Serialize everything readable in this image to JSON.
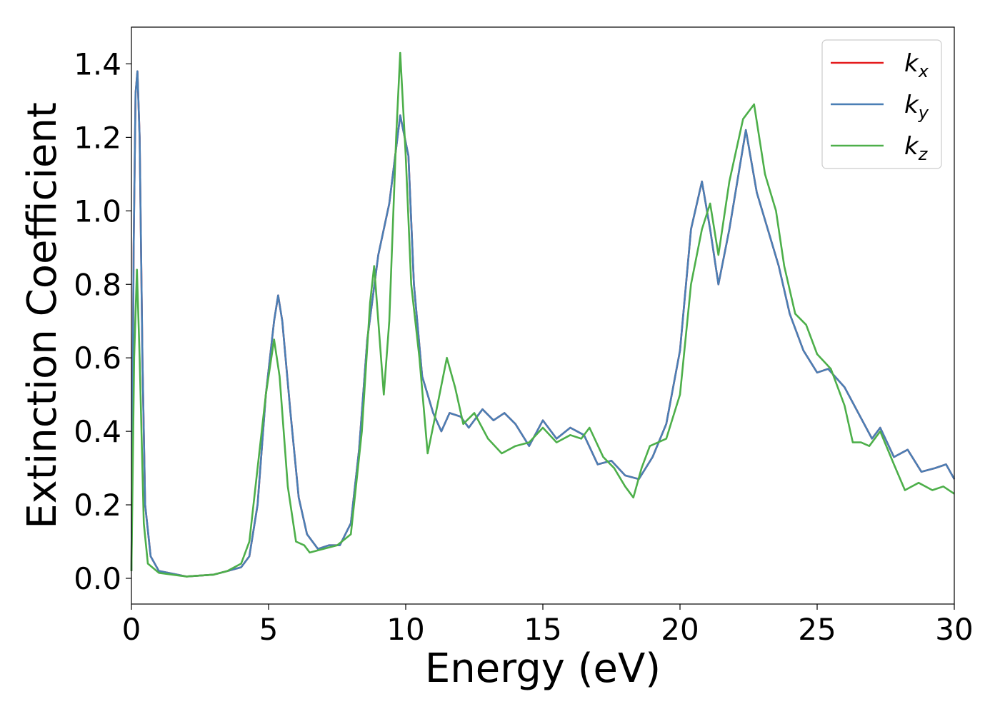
{
  "chart_data": {
    "type": "line",
    "title": "",
    "xlabel": "Energy (eV)",
    "ylabel": "Extinction Coefficient",
    "xlim": [
      0,
      30
    ],
    "ylim": [
      -0.07,
      1.5
    ],
    "xticks": [
      0,
      5,
      10,
      15,
      20,
      25,
      30
    ],
    "xtick_labels": [
      "0",
      "5",
      "10",
      "15",
      "20",
      "25",
      "30"
    ],
    "yticks": [
      0.0,
      0.2,
      0.4,
      0.6,
      0.8,
      1.0,
      1.2,
      1.4
    ],
    "ytick_labels": [
      "0.0",
      "0.2",
      "0.4",
      "0.6",
      "0.8",
      "1.0",
      "1.2",
      "1.4"
    ],
    "grid": false,
    "legend_position": "top-right",
    "series": [
      {
        "name": "k_x",
        "label_base": "k",
        "label_sub": "x",
        "color": "#e41a1c",
        "points": [
          [
            0,
            0.02
          ],
          [
            0.08,
            0.9
          ],
          [
            0.15,
            1.32
          ],
          [
            0.22,
            1.38
          ],
          [
            0.3,
            1.2
          ],
          [
            0.4,
            0.6
          ],
          [
            0.5,
            0.2
          ],
          [
            0.7,
            0.06
          ],
          [
            1,
            0.02
          ],
          [
            2,
            0.005
          ],
          [
            3,
            0.01
          ],
          [
            3.5,
            0.02
          ],
          [
            4,
            0.03
          ],
          [
            4.3,
            0.06
          ],
          [
            4.6,
            0.2
          ],
          [
            4.9,
            0.5
          ],
          [
            5.2,
            0.7
          ],
          [
            5.35,
            0.77
          ],
          [
            5.5,
            0.7
          ],
          [
            5.8,
            0.45
          ],
          [
            6.1,
            0.22
          ],
          [
            6.4,
            0.12
          ],
          [
            6.8,
            0.08
          ],
          [
            7.2,
            0.09
          ],
          [
            7.6,
            0.09
          ],
          [
            8,
            0.15
          ],
          [
            8.3,
            0.35
          ],
          [
            8.6,
            0.65
          ],
          [
            9,
            0.88
          ],
          [
            9.4,
            1.02
          ],
          [
            9.8,
            1.26
          ],
          [
            10.1,
            1.15
          ],
          [
            10.3,
            0.8
          ],
          [
            10.6,
            0.55
          ],
          [
            11,
            0.45
          ],
          [
            11.3,
            0.4
          ],
          [
            11.6,
            0.45
          ],
          [
            12,
            0.44
          ],
          [
            12.3,
            0.41
          ],
          [
            12.8,
            0.46
          ],
          [
            13.2,
            0.43
          ],
          [
            13.6,
            0.45
          ],
          [
            14,
            0.42
          ],
          [
            14.5,
            0.36
          ],
          [
            15,
            0.43
          ],
          [
            15.5,
            0.38
          ],
          [
            16,
            0.41
          ],
          [
            16.5,
            0.39
          ],
          [
            17,
            0.31
          ],
          [
            17.5,
            0.32
          ],
          [
            18,
            0.28
          ],
          [
            18.5,
            0.27
          ],
          [
            19,
            0.33
          ],
          [
            19.5,
            0.42
          ],
          [
            20,
            0.62
          ],
          [
            20.4,
            0.95
          ],
          [
            20.8,
            1.08
          ],
          [
            21.1,
            0.95
          ],
          [
            21.4,
            0.8
          ],
          [
            21.8,
            0.95
          ],
          [
            22.4,
            1.22
          ],
          [
            22.8,
            1.05
          ],
          [
            23.2,
            0.95
          ],
          [
            23.6,
            0.85
          ],
          [
            24,
            0.72
          ],
          [
            24.5,
            0.62
          ],
          [
            25,
            0.56
          ],
          [
            25.4,
            0.57
          ],
          [
            26,
            0.52
          ],
          [
            26.5,
            0.45
          ],
          [
            27,
            0.38
          ],
          [
            27.3,
            0.41
          ],
          [
            27.8,
            0.33
          ],
          [
            28.3,
            0.35
          ],
          [
            28.8,
            0.29
          ],
          [
            29.3,
            0.3
          ],
          [
            29.7,
            0.31
          ],
          [
            30,
            0.27
          ]
        ]
      },
      {
        "name": "k_y",
        "label_base": "k",
        "label_sub": "y",
        "color": "#4a7fb5",
        "points": [
          [
            0,
            0.02
          ],
          [
            0.08,
            0.9
          ],
          [
            0.15,
            1.32
          ],
          [
            0.22,
            1.38
          ],
          [
            0.3,
            1.2
          ],
          [
            0.4,
            0.6
          ],
          [
            0.5,
            0.2
          ],
          [
            0.7,
            0.06
          ],
          [
            1,
            0.02
          ],
          [
            2,
            0.005
          ],
          [
            3,
            0.01
          ],
          [
            3.5,
            0.02
          ],
          [
            4,
            0.03
          ],
          [
            4.3,
            0.06
          ],
          [
            4.6,
            0.2
          ],
          [
            4.9,
            0.5
          ],
          [
            5.2,
            0.7
          ],
          [
            5.35,
            0.77
          ],
          [
            5.5,
            0.7
          ],
          [
            5.8,
            0.45
          ],
          [
            6.1,
            0.22
          ],
          [
            6.4,
            0.12
          ],
          [
            6.8,
            0.08
          ],
          [
            7.2,
            0.09
          ],
          [
            7.6,
            0.09
          ],
          [
            8,
            0.15
          ],
          [
            8.3,
            0.35
          ],
          [
            8.6,
            0.65
          ],
          [
            9,
            0.88
          ],
          [
            9.4,
            1.02
          ],
          [
            9.8,
            1.26
          ],
          [
            10.1,
            1.15
          ],
          [
            10.3,
            0.8
          ],
          [
            10.6,
            0.55
          ],
          [
            11,
            0.45
          ],
          [
            11.3,
            0.4
          ],
          [
            11.6,
            0.45
          ],
          [
            12,
            0.44
          ],
          [
            12.3,
            0.41
          ],
          [
            12.8,
            0.46
          ],
          [
            13.2,
            0.43
          ],
          [
            13.6,
            0.45
          ],
          [
            14,
            0.42
          ],
          [
            14.5,
            0.36
          ],
          [
            15,
            0.43
          ],
          [
            15.5,
            0.38
          ],
          [
            16,
            0.41
          ],
          [
            16.5,
            0.39
          ],
          [
            17,
            0.31
          ],
          [
            17.5,
            0.32
          ],
          [
            18,
            0.28
          ],
          [
            18.5,
            0.27
          ],
          [
            19,
            0.33
          ],
          [
            19.5,
            0.42
          ],
          [
            20,
            0.62
          ],
          [
            20.4,
            0.95
          ],
          [
            20.8,
            1.08
          ],
          [
            21.1,
            0.95
          ],
          [
            21.4,
            0.8
          ],
          [
            21.8,
            0.95
          ],
          [
            22.4,
            1.22
          ],
          [
            22.8,
            1.05
          ],
          [
            23.2,
            0.95
          ],
          [
            23.6,
            0.85
          ],
          [
            24,
            0.72
          ],
          [
            24.5,
            0.62
          ],
          [
            25,
            0.56
          ],
          [
            25.4,
            0.57
          ],
          [
            26,
            0.52
          ],
          [
            26.5,
            0.45
          ],
          [
            27,
            0.38
          ],
          [
            27.3,
            0.41
          ],
          [
            27.8,
            0.33
          ],
          [
            28.3,
            0.35
          ],
          [
            28.8,
            0.29
          ],
          [
            29.3,
            0.3
          ],
          [
            29.7,
            0.31
          ],
          [
            30,
            0.27
          ]
        ]
      },
      {
        "name": "k_z",
        "label_base": "k",
        "label_sub": "z",
        "color": "#4daf4a",
        "points": [
          [
            0,
            0.02
          ],
          [
            0.1,
            0.6
          ],
          [
            0.2,
            0.84
          ],
          [
            0.3,
            0.6
          ],
          [
            0.45,
            0.15
          ],
          [
            0.6,
            0.04
          ],
          [
            1,
            0.015
          ],
          [
            2,
            0.005
          ],
          [
            3,
            0.01
          ],
          [
            3.5,
            0.02
          ],
          [
            4,
            0.04
          ],
          [
            4.3,
            0.1
          ],
          [
            4.6,
            0.3
          ],
          [
            4.9,
            0.5
          ],
          [
            5.2,
            0.65
          ],
          [
            5.4,
            0.55
          ],
          [
            5.7,
            0.25
          ],
          [
            6,
            0.1
          ],
          [
            6.3,
            0.09
          ],
          [
            6.5,
            0.07
          ],
          [
            7,
            0.08
          ],
          [
            7.5,
            0.09
          ],
          [
            8,
            0.12
          ],
          [
            8.4,
            0.4
          ],
          [
            8.7,
            0.75
          ],
          [
            8.85,
            0.85
          ],
          [
            9,
            0.7
          ],
          [
            9.2,
            0.5
          ],
          [
            9.4,
            0.7
          ],
          [
            9.65,
            1.2
          ],
          [
            9.8,
            1.43
          ],
          [
            10,
            1.15
          ],
          [
            10.2,
            0.8
          ],
          [
            10.5,
            0.6
          ],
          [
            10.8,
            0.34
          ],
          [
            11.1,
            0.45
          ],
          [
            11.5,
            0.6
          ],
          [
            11.8,
            0.52
          ],
          [
            12.1,
            0.42
          ],
          [
            12.5,
            0.45
          ],
          [
            13,
            0.38
          ],
          [
            13.5,
            0.34
          ],
          [
            14,
            0.36
          ],
          [
            14.5,
            0.37
          ],
          [
            15,
            0.41
          ],
          [
            15.5,
            0.37
          ],
          [
            16,
            0.39
          ],
          [
            16.4,
            0.38
          ],
          [
            16.7,
            0.41
          ],
          [
            17.2,
            0.33
          ],
          [
            17.6,
            0.3
          ],
          [
            18,
            0.25
          ],
          [
            18.3,
            0.22
          ],
          [
            18.6,
            0.3
          ],
          [
            18.9,
            0.36
          ],
          [
            19.5,
            0.38
          ],
          [
            20,
            0.5
          ],
          [
            20.4,
            0.8
          ],
          [
            20.8,
            0.95
          ],
          [
            21.1,
            1.02
          ],
          [
            21.4,
            0.88
          ],
          [
            21.8,
            1.08
          ],
          [
            22.3,
            1.25
          ],
          [
            22.7,
            1.29
          ],
          [
            23.1,
            1.1
          ],
          [
            23.5,
            1.0
          ],
          [
            23.8,
            0.85
          ],
          [
            24.2,
            0.72
          ],
          [
            24.6,
            0.69
          ],
          [
            25,
            0.61
          ],
          [
            25.5,
            0.57
          ],
          [
            26,
            0.47
          ],
          [
            26.3,
            0.37
          ],
          [
            26.6,
            0.37
          ],
          [
            26.9,
            0.36
          ],
          [
            27.3,
            0.4
          ],
          [
            27.8,
            0.31
          ],
          [
            28.2,
            0.24
          ],
          [
            28.7,
            0.26
          ],
          [
            29.2,
            0.24
          ],
          [
            29.6,
            0.25
          ],
          [
            30,
            0.23
          ]
        ]
      }
    ]
  }
}
